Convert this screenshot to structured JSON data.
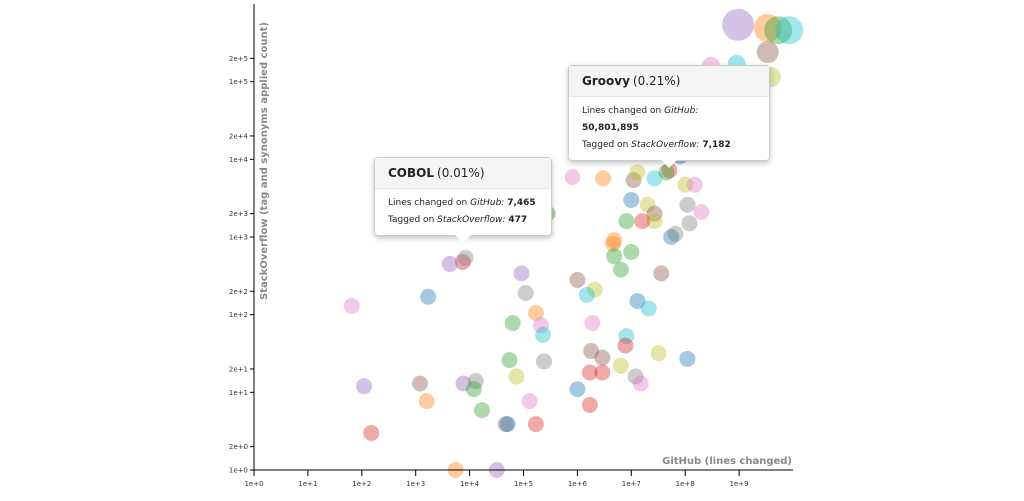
{
  "chart_data": {
    "type": "scatter",
    "x_label": "GitHub (lines changed)",
    "y_label": "StackOverflow (tag and synonyms applied count)",
    "log_x": true,
    "log_y": true,
    "opacity": 0.4,
    "xlim": [
      1,
      10000000000
    ],
    "ylim": [
      1,
      1000000
    ],
    "xticks": [
      {
        "value": 1,
        "label": "1e+0"
      },
      {
        "value": 10,
        "label": "1e+1"
      },
      {
        "value": 100,
        "label": "1e+2"
      },
      {
        "value": 1000,
        "label": "1e+3"
      },
      {
        "value": 10000,
        "label": "1e+4"
      },
      {
        "value": 100000,
        "label": "1e+5"
      },
      {
        "value": 1000000,
        "label": "1e+6"
      },
      {
        "value": 10000000,
        "label": "1e+7"
      },
      {
        "value": 100000000,
        "label": "1e+8"
      },
      {
        "value": 1000000000,
        "label": "1e+9"
      }
    ],
    "yticks": [
      {
        "value": 1,
        "label": "1e+0"
      },
      {
        "value": 2,
        "label": "2e+0"
      },
      {
        "value": 10,
        "label": "1e+1"
      },
      {
        "value": 20,
        "label": "2e+1"
      },
      {
        "value": 100,
        "label": "1e+2"
      },
      {
        "value": 200,
        "label": "2e+2"
      },
      {
        "value": 1000,
        "label": "1e+3"
      },
      {
        "value": 2000,
        "label": "2e+3"
      },
      {
        "value": 10000,
        "label": "1e+4"
      },
      {
        "value": 20000,
        "label": "2e+4"
      },
      {
        "value": 100000,
        "label": "1e+5"
      },
      {
        "value": 200000,
        "label": "2e+5"
      }
    ],
    "series": [
      {
        "x": [
          960000000,
          3400000000,
          5300000000,
          8500000000,
          3400000000,
          3900000000,
          900000000,
          300000000,
          50801895,
          7465,
          81000000,
          27000000,
          45000000,
          100000000,
          150000000,
          11000000,
          13000000,
          810000,
          3000000,
          10000000,
          20000000,
          27000000,
          110000000,
          200000000,
          120000000,
          27000000,
          16000000,
          8100000,
          55000000,
          66000000,
          4800000,
          4600000,
          10000000,
          4800000,
          6400000,
          36000000,
          280000,
          4300,
          8400,
          92000,
          110000,
          1000000,
          2100000,
          1500000,
          13000000,
          21000000,
          1700,
          65,
          170000,
          210000,
          230000,
          63000,
          1900000,
          8100000,
          7800000,
          1800000,
          2900000,
          32000000,
          110000000,
          55000,
          240000,
          6400000,
          2900000,
          1700000,
          74000,
          12000000,
          15000000,
          1000000,
          1200,
          110,
          7700,
          13000,
          12000,
          1600,
          130000,
          17000,
          1700000,
          47000,
          51000,
          170000,
          150,
          5500,
          32000
        ],
        "values": [
          540000,
          490000,
          460000,
          460000,
          240000,
          115000,
          170000,
          160000,
          7182,
          477,
          11000,
          5700,
          6800,
          4700,
          4700,
          5400,
          6800,
          5900,
          5700,
          3000,
          2600,
          2000,
          2600,
          2100,
          1500,
          1600,
          1600,
          1600,
          1000,
          1100,
          910,
          820,
          640,
          570,
          380,
          340,
          2000,
          450,
          540,
          340,
          190,
          280,
          210,
          180,
          150,
          120,
          170,
          130,
          105,
          73,
          55,
          78,
          78,
          53,
          40,
          34,
          28,
          32,
          27,
          26,
          25,
          22,
          18,
          18,
          16,
          16,
          13,
          11,
          13,
          12,
          13,
          14,
          11,
          7.7,
          7.7,
          5.9,
          6.9,
          3.9,
          3.9,
          3.9,
          3,
          1,
          1
        ],
        "colors": [
          "#9467bd",
          "#ff7f0e",
          "#2ca02c",
          "#17becf",
          "#8c564b",
          "#bcbd22",
          "#17becf",
          "#e377c2",
          "#d62728",
          "#d62728",
          "#1f77b4",
          "#17becf",
          "#2ca02c",
          "#bcbd22",
          "#e377c2",
          "#8c564b",
          "#bcbd22",
          "#e377c2",
          "#ff7f0e",
          "#1f77b4",
          "#bcbd22",
          "#8c564b",
          "#7f7f7f",
          "#e377c2",
          "#7f7f7f",
          "#bcbd22",
          "#d62728",
          "#2ca02c",
          "#1f77b4",
          "#7f7f7f",
          "#ff7f0e",
          "#ff7f0e",
          "#2ca02c",
          "#2ca02c",
          "#2ca02c",
          "#8c564b",
          "#2ca02c",
          "#9467bd",
          "#7f7f7f",
          "#9467bd",
          "#7f7f7f",
          "#8c564b",
          "#bcbd22",
          "#17becf",
          "#1f77b4",
          "#17becf",
          "#1f77b4",
          "#e377c2",
          "#ff7f0e",
          "#e377c2",
          "#17becf",
          "#2ca02c",
          "#e377c2",
          "#17becf",
          "#d62728",
          "#8c564b",
          "#8c564b",
          "#bcbd22",
          "#1f77b4",
          "#2ca02c",
          "#7f7f7f",
          "#bcbd22",
          "#d62728",
          "#d62728",
          "#bcbd22",
          "#7f7f7f",
          "#e377c2",
          "#1f77b4",
          "#8c564b",
          "#9467bd",
          "#9467bd",
          "#7f7f7f",
          "#2ca02c",
          "#ff7f0e",
          "#e377c2",
          "#2ca02c",
          "#d62728",
          "#8c564b",
          "#1f77b4",
          "#d62728",
          "#d62728",
          "#ff7f0e",
          "#9467bd"
        ],
        "sizes": [
          16,
          14,
          14,
          14,
          11,
          10,
          9,
          9,
          8,
          8,
          8,
          8,
          8,
          8,
          8,
          8,
          8,
          8,
          8,
          8,
          8,
          8,
          8,
          8,
          8,
          8,
          8,
          8,
          8,
          8,
          8,
          8,
          8,
          8,
          8,
          8,
          8,
          8,
          8,
          8,
          8,
          8,
          8,
          8,
          8,
          8,
          8,
          8,
          8,
          8,
          8,
          8,
          8,
          8,
          8,
          8,
          8,
          8,
          8,
          8,
          8,
          8,
          8,
          8,
          8,
          8,
          8,
          8,
          8,
          8,
          8,
          8,
          8,
          8,
          8,
          8,
          8,
          8,
          8,
          8,
          8,
          8,
          8
        ]
      }
    ],
    "tooltips": [
      {
        "name": "Groovy",
        "share": "(0.21%)",
        "lines_label": "Lines changed on",
        "lines_source": "GitHub:",
        "lines_value": "50,801,895",
        "tagged_label": "Tagged on",
        "tagged_source": "StackOverflow:",
        "tagged_value": "7,182"
      },
      {
        "name": "COBOL",
        "share": "(0.01%)",
        "lines_label": "Lines changed on",
        "lines_source": "GitHub:",
        "lines_value": "7,465",
        "tagged_label": "Tagged on",
        "tagged_source": "StackOverflow:",
        "tagged_value": "477"
      }
    ]
  }
}
